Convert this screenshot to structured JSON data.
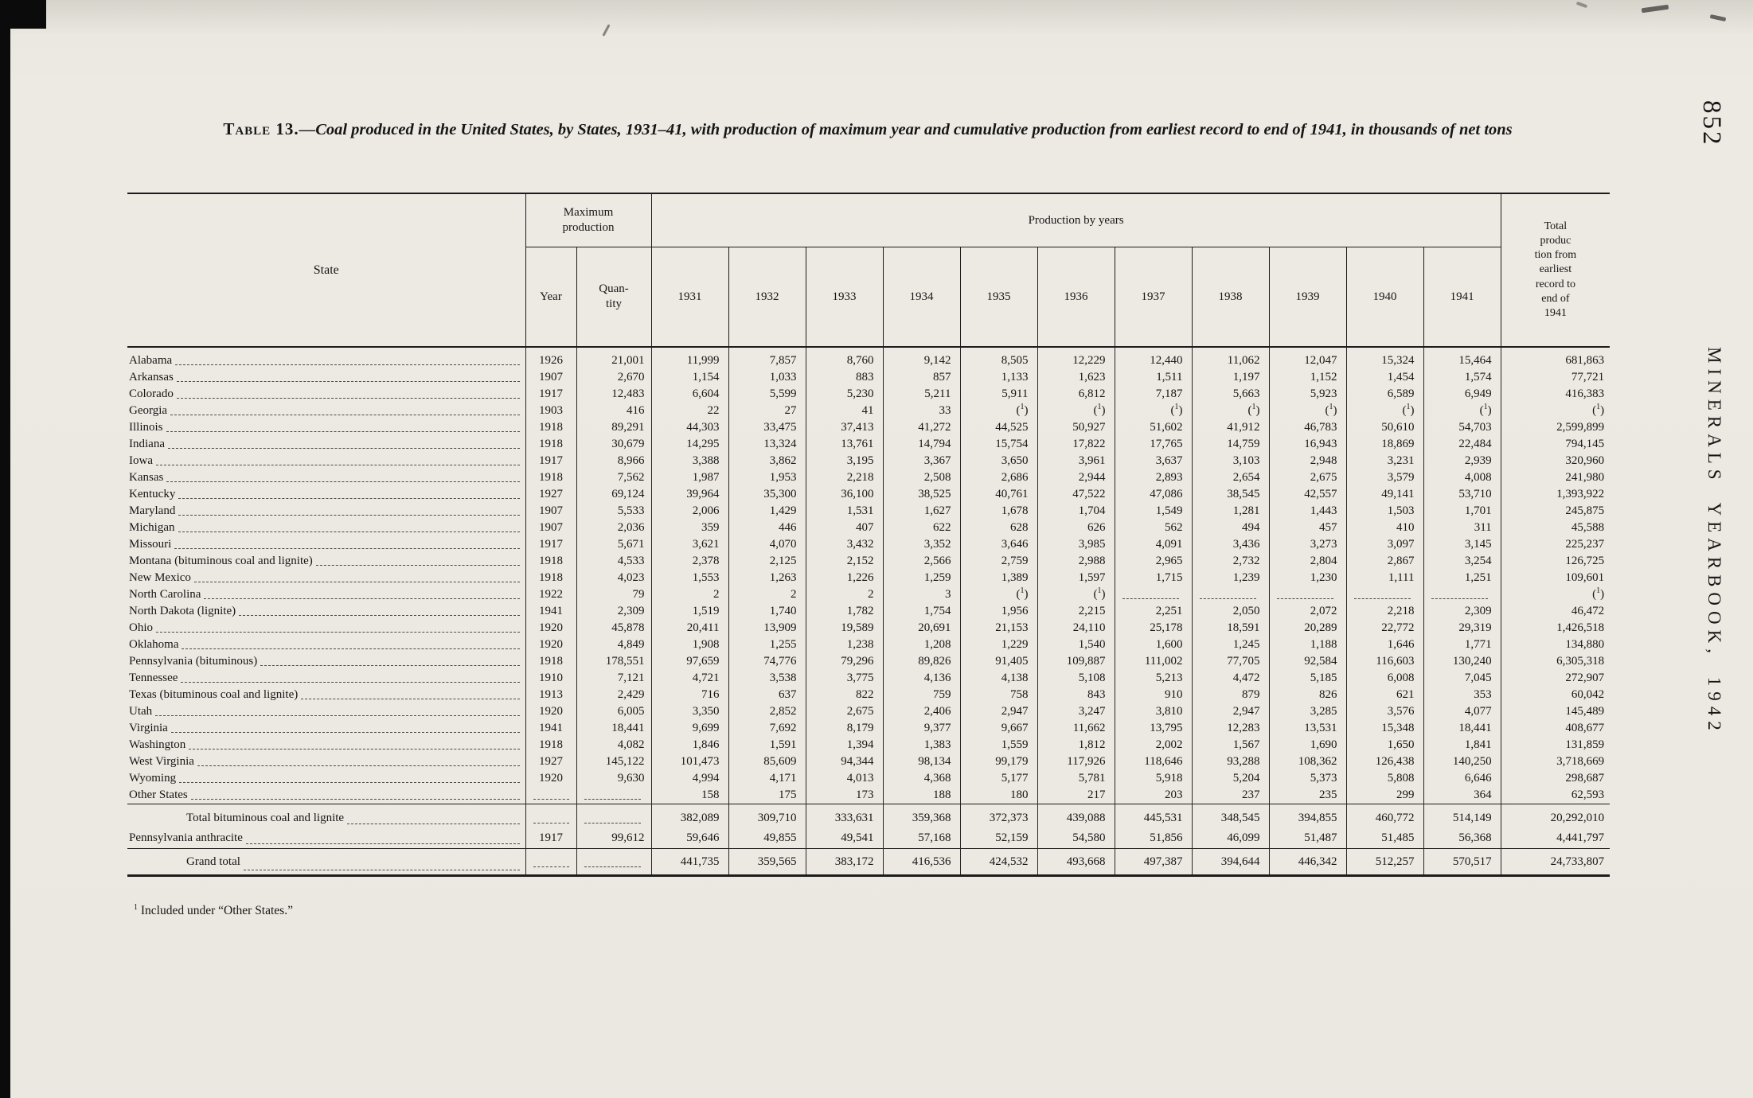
{
  "page": {
    "page_number": "852",
    "side_text": "MINERALS YEARBOOK, 1942",
    "footnote_marker": "1",
    "footnote_text": "Included under “Other States.”"
  },
  "table": {
    "title_label": "Table 13.",
    "title_rest": "—Coal produced in the United States, by States, 1931–41, with production of maximum year and cumulative production from earliest record to end of 1941, in thousands of net tons",
    "headers": {
      "state": "State",
      "max_production": "Maximum\nproduction",
      "year": "Year",
      "quantity": "Quan-\ntity",
      "production_by_years": "Production by years",
      "years": [
        "1931",
        "1932",
        "1933",
        "1934",
        "1935",
        "1936",
        "1937",
        "1938",
        "1939",
        "1940",
        "1941"
      ],
      "total": "Total\nproduc\ntion from\nearliest\nrecord to\nend of\n1941"
    },
    "rows": [
      {
        "state": "Alabama",
        "year": "1926",
        "quantity": "21,001",
        "values": [
          "11,999",
          "7,857",
          "8,760",
          "9,142",
          "8,505",
          "12,229",
          "12,440",
          "11,062",
          "12,047",
          "15,324",
          "15,464"
        ],
        "total": "681,863"
      },
      {
        "state": "Arkansas",
        "year": "1907",
        "quantity": "2,670",
        "values": [
          "1,154",
          "1,033",
          "883",
          "857",
          "1,133",
          "1,623",
          "1,511",
          "1,197",
          "1,152",
          "1,454",
          "1,574"
        ],
        "total": "77,721"
      },
      {
        "state": "Colorado",
        "year": "1917",
        "quantity": "12,483",
        "values": [
          "6,604",
          "5,599",
          "5,230",
          "5,211",
          "5,911",
          "6,812",
          "7,187",
          "5,663",
          "5,923",
          "6,589",
          "6,949"
        ],
        "total": "416,383"
      },
      {
        "state": "Georgia",
        "year": "1903",
        "quantity": "416",
        "values": [
          "22",
          "27",
          "41",
          "33",
          "(1)",
          "(1)",
          "(1)",
          "(1)",
          "(1)",
          "(1)",
          "(1)"
        ],
        "total": "(1)"
      },
      {
        "state": "Illinois",
        "year": "1918",
        "quantity": "89,291",
        "values": [
          "44,303",
          "33,475",
          "37,413",
          "41,272",
          "44,525",
          "50,927",
          "51,602",
          "41,912",
          "46,783",
          "50,610",
          "54,703"
        ],
        "total": "2,599,899"
      },
      {
        "state": "Indiana",
        "year": "1918",
        "quantity": "30,679",
        "values": [
          "14,295",
          "13,324",
          "13,761",
          "14,794",
          "15,754",
          "17,822",
          "17,765",
          "14,759",
          "16,943",
          "18,869",
          "22,484"
        ],
        "total": "794,145"
      },
      {
        "state": "Iowa",
        "year": "1917",
        "quantity": "8,966",
        "values": [
          "3,388",
          "3,862",
          "3,195",
          "3,367",
          "3,650",
          "3,961",
          "3,637",
          "3,103",
          "2,948",
          "3,231",
          "2,939"
        ],
        "total": "320,960"
      },
      {
        "state": "Kansas",
        "year": "1918",
        "quantity": "7,562",
        "values": [
          "1,987",
          "1,953",
          "2,218",
          "2,508",
          "2,686",
          "2,944",
          "2,893",
          "2,654",
          "2,675",
          "3,579",
          "4,008"
        ],
        "total": "241,980"
      },
      {
        "state": "Kentucky",
        "year": "1927",
        "quantity": "69,124",
        "values": [
          "39,964",
          "35,300",
          "36,100",
          "38,525",
          "40,761",
          "47,522",
          "47,086",
          "38,545",
          "42,557",
          "49,141",
          "53,710"
        ],
        "total": "1,393,922"
      },
      {
        "state": "Maryland",
        "year": "1907",
        "quantity": "5,533",
        "values": [
          "2,006",
          "1,429",
          "1,531",
          "1,627",
          "1,678",
          "1,704",
          "1,549",
          "1,281",
          "1,443",
          "1,503",
          "1,701"
        ],
        "total": "245,875"
      },
      {
        "state": "Michigan",
        "year": "1907",
        "quantity": "2,036",
        "values": [
          "359",
          "446",
          "407",
          "622",
          "628",
          "626",
          "562",
          "494",
          "457",
          "410",
          "311"
        ],
        "total": "45,588"
      },
      {
        "state": "Missouri",
        "year": "1917",
        "quantity": "5,671",
        "values": [
          "3,621",
          "4,070",
          "3,432",
          "3,352",
          "3,646",
          "3,985",
          "4,091",
          "3,436",
          "3,273",
          "3,097",
          "3,145"
        ],
        "total": "225,237"
      },
      {
        "state": "Montana (bituminous coal and lignite)",
        "year": "1918",
        "quantity": "4,533",
        "values": [
          "2,378",
          "2,125",
          "2,152",
          "2,566",
          "2,759",
          "2,988",
          "2,965",
          "2,732",
          "2,804",
          "2,867",
          "3,254"
        ],
        "total": "126,725"
      },
      {
        "state": "New Mexico",
        "year": "1918",
        "quantity": "4,023",
        "values": [
          "1,553",
          "1,263",
          "1,226",
          "1,259",
          "1,389",
          "1,597",
          "1,715",
          "1,239",
          "1,230",
          "1,111",
          "1,251"
        ],
        "total": "109,601"
      },
      {
        "state": "North Carolina",
        "year": "1922",
        "quantity": "79",
        "values": [
          "2",
          "2",
          "2",
          "3",
          "(1)",
          "(1)",
          "",
          "",
          "",
          "",
          ""
        ],
        "total": "(1)"
      },
      {
        "state": "North Dakota (lignite)",
        "year": "1941",
        "quantity": "2,309",
        "values": [
          "1,519",
          "1,740",
          "1,782",
          "1,754",
          "1,956",
          "2,215",
          "2,251",
          "2,050",
          "2,072",
          "2,218",
          "2,309"
        ],
        "total": "46,472"
      },
      {
        "state": "Ohio",
        "year": "1920",
        "quantity": "45,878",
        "values": [
          "20,411",
          "13,909",
          "19,589",
          "20,691",
          "21,153",
          "24,110",
          "25,178",
          "18,591",
          "20,289",
          "22,772",
          "29,319"
        ],
        "total": "1,426,518"
      },
      {
        "state": "Oklahoma",
        "year": "1920",
        "quantity": "4,849",
        "values": [
          "1,908",
          "1,255",
          "1,238",
          "1,208",
          "1,229",
          "1,540",
          "1,600",
          "1,245",
          "1,188",
          "1,646",
          "1,771"
        ],
        "total": "134,880"
      },
      {
        "state": "Pennsylvania (bituminous)",
        "year": "1918",
        "quantity": "178,551",
        "values": [
          "97,659",
          "74,776",
          "79,296",
          "89,826",
          "91,405",
          "109,887",
          "111,002",
          "77,705",
          "92,584",
          "116,603",
          "130,240"
        ],
        "total": "6,305,318"
      },
      {
        "state": "Tennessee",
        "year": "1910",
        "quantity": "7,121",
        "values": [
          "4,721",
          "3,538",
          "3,775",
          "4,136",
          "4,138",
          "5,108",
          "5,213",
          "4,472",
          "5,185",
          "6,008",
          "7,045"
        ],
        "total": "272,907"
      },
      {
        "state": "Texas (bituminous coal and lignite)",
        "year": "1913",
        "quantity": "2,429",
        "values": [
          "716",
          "637",
          "822",
          "759",
          "758",
          "843",
          "910",
          "879",
          "826",
          "621",
          "353"
        ],
        "total": "60,042"
      },
      {
        "state": "Utah",
        "year": "1920",
        "quantity": "6,005",
        "values": [
          "3,350",
          "2,852",
          "2,675",
          "2,406",
          "2,947",
          "3,247",
          "3,810",
          "2,947",
          "3,285",
          "3,576",
          "4,077"
        ],
        "total": "145,489"
      },
      {
        "state": "Virginia",
        "year": "1941",
        "quantity": "18,441",
        "values": [
          "9,699",
          "7,692",
          "8,179",
          "9,377",
          "9,667",
          "11,662",
          "13,795",
          "12,283",
          "13,531",
          "15,348",
          "18,441"
        ],
        "total": "408,677"
      },
      {
        "state": "Washington",
        "year": "1918",
        "quantity": "4,082",
        "values": [
          "1,846",
          "1,591",
          "1,394",
          "1,383",
          "1,559",
          "1,812",
          "2,002",
          "1,567",
          "1,690",
          "1,650",
          "1,841"
        ],
        "total": "131,859"
      },
      {
        "state": "West Virginia",
        "year": "1927",
        "quantity": "145,122",
        "values": [
          "101,473",
          "85,609",
          "94,344",
          "98,134",
          "99,179",
          "117,926",
          "118,646",
          "93,288",
          "108,362",
          "126,438",
          "140,250"
        ],
        "total": "3,718,669"
      },
      {
        "state": "Wyoming",
        "year": "1920",
        "quantity": "9,630",
        "values": [
          "4,994",
          "4,171",
          "4,013",
          "4,368",
          "5,177",
          "5,781",
          "5,918",
          "5,204",
          "5,373",
          "5,808",
          "6,646"
        ],
        "total": "298,687"
      },
      {
        "state": "Other States",
        "year": "",
        "quantity": "",
        "values": [
          "158",
          "175",
          "173",
          "188",
          "180",
          "217",
          "203",
          "237",
          "235",
          "299",
          "364"
        ],
        "total": "62,593"
      }
    ],
    "total_rows": [
      {
        "state": "Total bituminous coal and lignite",
        "indent": true,
        "year": "",
        "quantity": "",
        "values": [
          "382,089",
          "309,710",
          "333,631",
          "359,368",
          "372,373",
          "439,088",
          "445,531",
          "348,545",
          "394,855",
          "460,772",
          "514,149"
        ],
        "total": "20,292,010"
      },
      {
        "state": "Pennsylvania anthracite",
        "year": "1917",
        "quantity": "99,612",
        "values": [
          "59,646",
          "49,855",
          "49,541",
          "57,168",
          "52,159",
          "54,580",
          "51,856",
          "46,099",
          "51,487",
          "51,485",
          "56,368"
        ],
        "total": "4,441,797"
      }
    ],
    "grand_rows": [
      {
        "state": "Grand total",
        "indent": true,
        "year": "",
        "quantity": "",
        "values": [
          "441,735",
          "359,565",
          "383,172",
          "416,536",
          "424,532",
          "493,668",
          "497,387",
          "394,644",
          "446,342",
          "512,257",
          "570,517"
        ],
        "total": "24,733,807"
      }
    ]
  }
}
